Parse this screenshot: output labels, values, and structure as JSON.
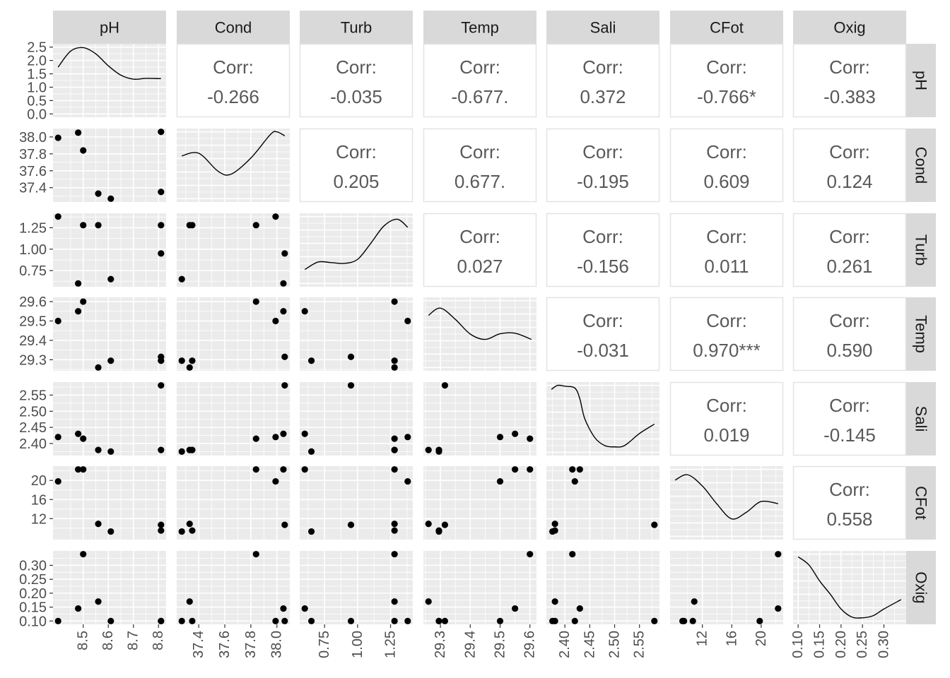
{
  "variables": [
    "pH",
    "Cond",
    "Turb",
    "Temp",
    "Sali",
    "CFot",
    "Oxig"
  ],
  "corr_label": "Corr:",
  "colors": {
    "panel_bg": "#EBEBEB",
    "grid": "#FFFFFF",
    "strip_bg": "#D9D9D9",
    "strip_text": "#1A1A1A",
    "corr_text": "#595959",
    "point": "#000000",
    "axis_text": "#4D4D4D"
  },
  "chart_data": {
    "type": "scatter",
    "subtype": "pairs-plot",
    "grid": true,
    "variables": [
      "pH",
      "Cond",
      "Turb",
      "Temp",
      "Sali",
      "CFot",
      "Oxig"
    ],
    "correlations": [
      {
        "row": "pH",
        "col": "Cond",
        "text": "-0.266"
      },
      {
        "row": "pH",
        "col": "Turb",
        "text": "-0.035"
      },
      {
        "row": "pH",
        "col": "Temp",
        "text": "-0.677."
      },
      {
        "row": "pH",
        "col": "Sali",
        "text": "0.372"
      },
      {
        "row": "pH",
        "col": "CFot",
        "text": "-0.766*"
      },
      {
        "row": "pH",
        "col": "Oxig",
        "text": "-0.383"
      },
      {
        "row": "Cond",
        "col": "Turb",
        "text": "0.205"
      },
      {
        "row": "Cond",
        "col": "Temp",
        "text": "0.677."
      },
      {
        "row": "Cond",
        "col": "Sali",
        "text": "-0.195"
      },
      {
        "row": "Cond",
        "col": "CFot",
        "text": "0.609"
      },
      {
        "row": "Cond",
        "col": "Oxig",
        "text": "0.124"
      },
      {
        "row": "Turb",
        "col": "Temp",
        "text": "0.027"
      },
      {
        "row": "Turb",
        "col": "Sali",
        "text": "-0.156"
      },
      {
        "row": "Turb",
        "col": "CFot",
        "text": "0.011"
      },
      {
        "row": "Turb",
        "col": "Oxig",
        "text": "0.261"
      },
      {
        "row": "Temp",
        "col": "Sali",
        "text": "-0.031"
      },
      {
        "row": "Temp",
        "col": "CFot",
        "text": "0.970***"
      },
      {
        "row": "Temp",
        "col": "Oxig",
        "text": "0.590"
      },
      {
        "row": "Sali",
        "col": "CFot",
        "text": "0.019"
      },
      {
        "row": "Sali",
        "col": "Oxig",
        "text": "-0.145"
      },
      {
        "row": "CFot",
        "col": "Oxig",
        "text": "0.558"
      }
    ],
    "axes": {
      "pH": {
        "range": [
          8.4,
          8.81
        ],
        "ticks": [
          8.5,
          8.6,
          8.7,
          8.8
        ],
        "tick_labels": [
          "8.5",
          "8.6",
          "8.7",
          "8.8"
        ]
      },
      "Cond": {
        "range": [
          37.27,
          38.06
        ],
        "ticks": [
          37.4,
          37.6,
          37.8,
          38.0
        ],
        "tick_labels": [
          "37.4",
          "37.6",
          "37.8",
          "38.0"
        ]
      },
      "Turb": {
        "range": [
          0.6,
          1.38
        ],
        "ticks": [
          0.75,
          1.0,
          1.25
        ],
        "tick_labels": [
          "0.75",
          "1.00",
          "1.25"
        ]
      },
      "Temp": {
        "range": [
          29.26,
          29.605
        ],
        "ticks": [
          29.3,
          29.4,
          29.5,
          29.6
        ],
        "tick_labels": [
          "29.3",
          "29.4",
          "29.5",
          "29.6"
        ]
      },
      "Sali": {
        "range": [
          2.373,
          2.58
        ],
        "ticks": [
          2.4,
          2.45,
          2.5,
          2.55
        ],
        "tick_labels": [
          "2.40",
          "2.45",
          "2.50",
          "2.55"
        ]
      },
      "CFot": {
        "range": [
          8.3,
          22.3
        ],
        "ticks": [
          12,
          16,
          20
        ],
        "tick_labels": [
          "12",
          "16",
          "20"
        ]
      },
      "Oxig": {
        "range": [
          0.1,
          0.34
        ],
        "ticks": [
          0.1,
          0.15,
          0.2,
          0.25,
          0.3
        ],
        "tick_labels": [
          "0.10",
          "0.15",
          "0.20",
          "0.25",
          "0.30"
        ]
      }
    },
    "density_axis": {
      "range": [
        0,
        2.5
      ],
      "ticks": [
        0.0,
        0.5,
        1.0,
        1.5,
        2.0,
        2.5
      ],
      "tick_labels": [
        "0.0",
        "0.5",
        "1.0",
        "1.5",
        "2.0",
        "2.5"
      ]
    },
    "observations": [
      {
        "pH": 8.4,
        "Cond": 37.99,
        "Turb": 1.38,
        "Temp": 29.5,
        "Sali": 2.42,
        "CFot": 19.8,
        "Oxig": 0.1
      },
      {
        "pH": 8.48,
        "Cond": 38.05,
        "Turb": 0.6,
        "Temp": 29.55,
        "Sali": 2.43,
        "CFot": 22.3,
        "Oxig": 0.145
      },
      {
        "pH": 8.5,
        "Cond": 37.84,
        "Turb": 1.28,
        "Temp": 29.6,
        "Sali": 2.415,
        "CFot": 22.3,
        "Oxig": 0.34
      },
      {
        "pH": 8.56,
        "Cond": 37.33,
        "Turb": 1.28,
        "Temp": 29.26,
        "Sali": 2.38,
        "CFot": 10.9,
        "Oxig": 0.17
      },
      {
        "pH": 8.61,
        "Cond": 37.27,
        "Turb": 0.65,
        "Temp": 29.295,
        "Sali": 2.375,
        "CFot": 9.3,
        "Oxig": 0.1
      },
      {
        "pH": 8.81,
        "Cond": 38.06,
        "Turb": 0.95,
        "Temp": 29.315,
        "Sali": 2.58,
        "CFot": 10.7,
        "Oxig": 0.1
      },
      {
        "pH": 8.81,
        "Cond": 37.35,
        "Turb": 1.28,
        "Temp": 29.295,
        "Sali": 2.38,
        "CFot": 9.5,
        "Oxig": 0.1
      }
    ],
    "densities": {
      "pH": [
        [
          8.4,
          1.75
        ],
        [
          8.45,
          2.35
        ],
        [
          8.5,
          2.48
        ],
        [
          8.55,
          2.25
        ],
        [
          8.6,
          1.8
        ],
        [
          8.65,
          1.45
        ],
        [
          8.7,
          1.3
        ],
        [
          8.75,
          1.33
        ],
        [
          8.81,
          1.32
        ]
      ],
      "Cond": [
        [
          37.27,
          1.6
        ],
        [
          37.4,
          1.7
        ],
        [
          37.55,
          1.02
        ],
        [
          37.65,
          0.92
        ],
        [
          37.8,
          1.52
        ],
        [
          37.95,
          2.4
        ],
        [
          38.0,
          2.5
        ],
        [
          38.06,
          2.35
        ]
      ],
      "Turb": [
        [
          0.6,
          0.52
        ],
        [
          0.7,
          0.8
        ],
        [
          0.8,
          0.78
        ],
        [
          0.9,
          0.75
        ],
        [
          1.0,
          0.9
        ],
        [
          1.1,
          1.5
        ],
        [
          1.2,
          2.15
        ],
        [
          1.3,
          2.4
        ],
        [
          1.38,
          2.1
        ]
      ],
      "Temp": [
        [
          29.26,
          1.95
        ],
        [
          29.3,
          2.22
        ],
        [
          29.35,
          1.8
        ],
        [
          29.4,
          1.25
        ],
        [
          29.45,
          1.05
        ],
        [
          29.5,
          1.26
        ],
        [
          29.55,
          1.28
        ],
        [
          29.605,
          1.05
        ]
      ],
      "Sali": [
        [
          2.373,
          2.35
        ],
        [
          2.385,
          2.5
        ],
        [
          2.4,
          2.47
        ],
        [
          2.42,
          2.4
        ],
        [
          2.43,
          2.0
        ],
        [
          2.44,
          1.25
        ],
        [
          2.46,
          0.55
        ],
        [
          2.48,
          0.25
        ],
        [
          2.5,
          0.2
        ],
        [
          2.52,
          0.25
        ],
        [
          2.55,
          0.7
        ],
        [
          2.58,
          1.05
        ]
      ],
      "CFot": [
        [
          8.3,
          2.1
        ],
        [
          10.0,
          2.3
        ],
        [
          12.0,
          1.88
        ],
        [
          14.0,
          1.2
        ],
        [
          16.0,
          0.65
        ],
        [
          18.0,
          0.9
        ],
        [
          20.0,
          1.3
        ],
        [
          22.3,
          1.22
        ]
      ],
      "Oxig": [
        [
          0.1,
          2.4
        ],
        [
          0.125,
          2.1
        ],
        [
          0.15,
          1.5
        ],
        [
          0.175,
          1.0
        ],
        [
          0.2,
          0.45
        ],
        [
          0.225,
          0.15
        ],
        [
          0.25,
          0.12
        ],
        [
          0.275,
          0.2
        ],
        [
          0.3,
          0.45
        ],
        [
          0.34,
          0.8
        ]
      ]
    }
  }
}
